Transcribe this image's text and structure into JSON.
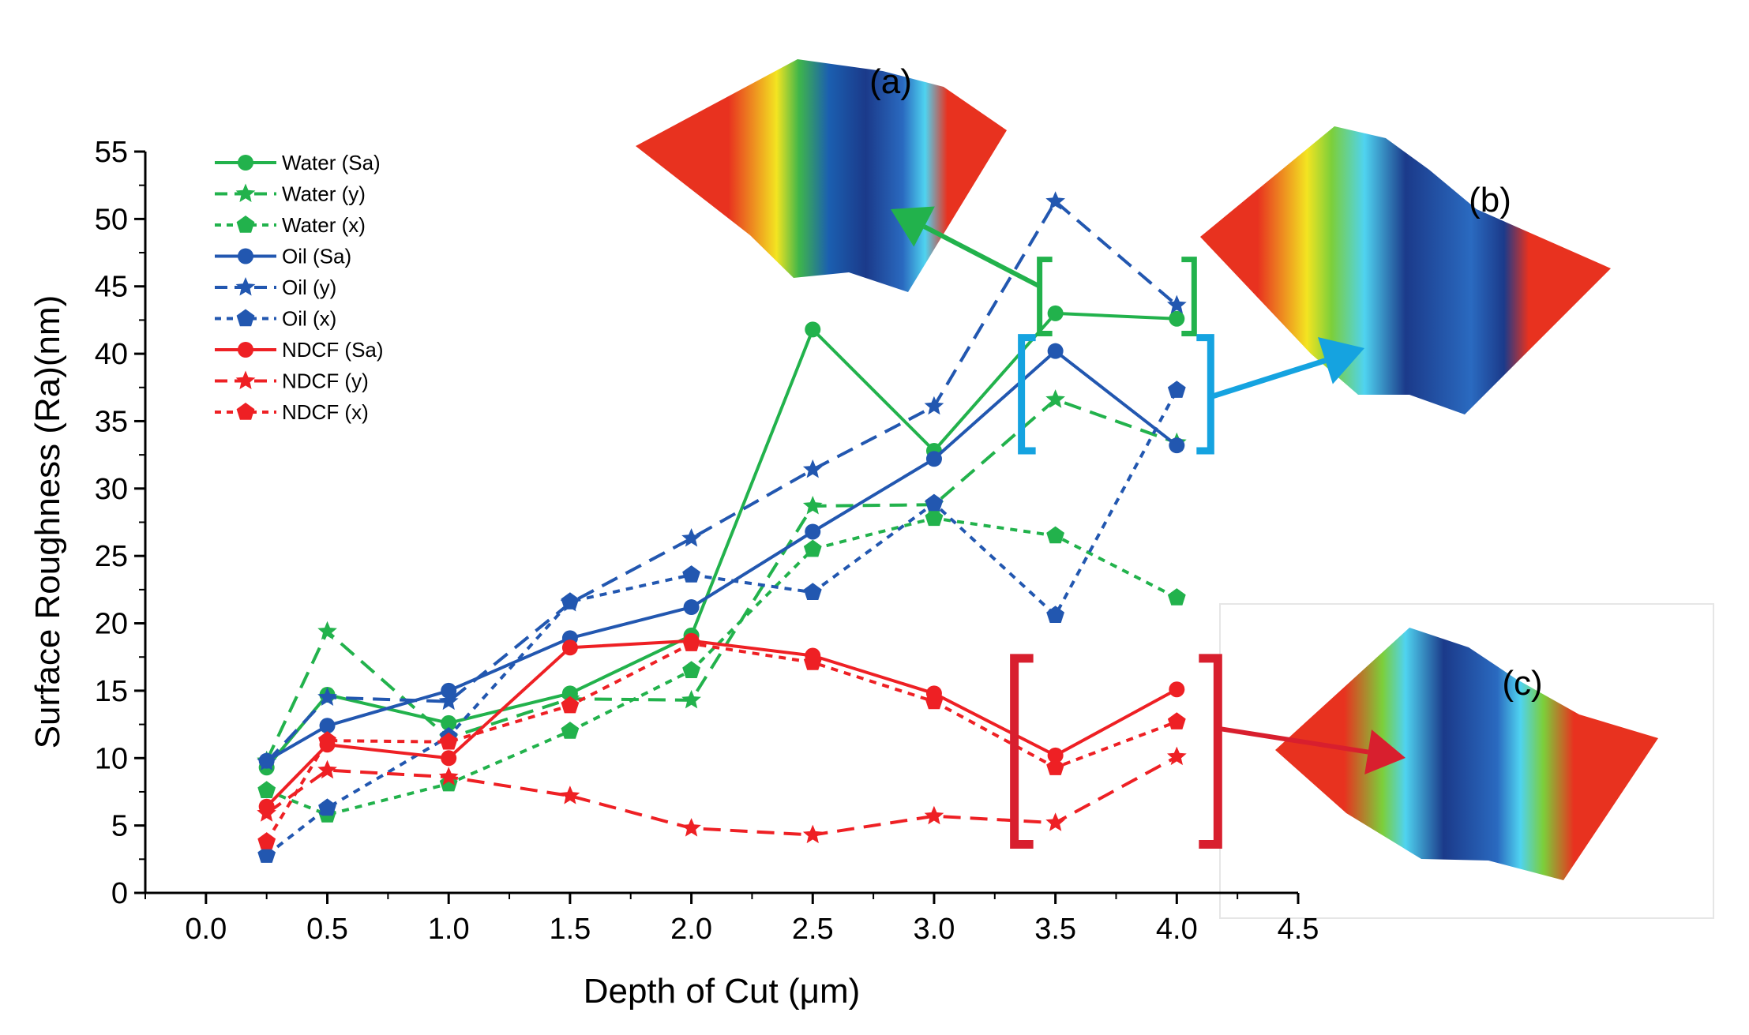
{
  "chart_data": {
    "type": "line",
    "title": "",
    "xlabel": "Depth of Cut (μm)",
    "ylabel": "Surface Roughness (Ra)(nm)",
    "xlim": [
      -0.25,
      4.5
    ],
    "ylim": [
      0,
      55
    ],
    "x_ticks": [
      0.0,
      0.5,
      1.0,
      1.5,
      2.0,
      2.5,
      3.0,
      3.5,
      4.0,
      4.5
    ],
    "x_tick_labels": [
      "0.0",
      "0.5",
      "1.0",
      "1.5",
      "2.0",
      "2.5",
      "3.0",
      "3.5",
      "4.0",
      "4.5"
    ],
    "y_ticks": [
      0,
      5,
      10,
      15,
      20,
      25,
      30,
      35,
      40,
      45,
      50,
      55
    ],
    "y_tick_labels": [
      "0",
      "5",
      "10",
      "15",
      "20",
      "25",
      "30",
      "35",
      "40",
      "45",
      "50",
      "55"
    ],
    "grid": false,
    "legend_position": "top-left",
    "x": [
      0.25,
      0.5,
      1.0,
      1.5,
      2.0,
      2.5,
      3.0,
      3.5,
      4.0
    ],
    "series": [
      {
        "name": "Water (Sa)",
        "color": "#22b24c",
        "dash": "solid",
        "marker": "circle",
        "values": [
          9.3,
          14.7,
          12.6,
          14.8,
          19.1,
          41.8,
          32.8,
          43.0,
          42.6
        ]
      },
      {
        "name": "Water (y)",
        "color": "#22b24c",
        "dash": "dash",
        "marker": "star",
        "values": [
          9.8,
          19.4,
          11.5,
          14.4,
          14.3,
          28.7,
          28.8,
          36.6,
          33.4
        ]
      },
      {
        "name": "Water (x)",
        "color": "#22b24c",
        "dash": "dot",
        "marker": "pentagon",
        "values": [
          7.6,
          5.8,
          8.1,
          12.0,
          16.5,
          25.5,
          27.8,
          26.5,
          21.9
        ]
      },
      {
        "name": "Oil (Sa)",
        "color": "#2257b0",
        "dash": "solid",
        "marker": "circle",
        "values": [
          9.8,
          12.4,
          15.0,
          18.9,
          21.2,
          26.8,
          32.2,
          40.2,
          33.2
        ]
      },
      {
        "name": "Oil (y)",
        "color": "#2257b0",
        "dash": "dash",
        "marker": "star",
        "values": [
          9.7,
          14.5,
          14.2,
          21.5,
          26.3,
          31.4,
          36.1,
          51.3,
          43.6
        ]
      },
      {
        "name": "Oil (x)",
        "color": "#2257b0",
        "dash": "dot",
        "marker": "pentagon",
        "values": [
          2.8,
          6.3,
          11.6,
          21.6,
          23.6,
          22.3,
          28.9,
          20.6,
          37.3
        ]
      },
      {
        "name": "NDCF (Sa)",
        "color": "#ee2024",
        "dash": "solid",
        "marker": "circle",
        "values": [
          6.4,
          11.0,
          10.0,
          18.2,
          18.7,
          17.6,
          14.8,
          10.2,
          15.1
        ]
      },
      {
        "name": "NDCF (y)",
        "color": "#ee2024",
        "dash": "dash",
        "marker": "star",
        "values": [
          5.9,
          9.1,
          8.6,
          7.2,
          4.8,
          4.3,
          5.7,
          5.2,
          10.1
        ]
      },
      {
        "name": "NDCF (x)",
        "color": "#ee2024",
        "dash": "dot",
        "marker": "pentagon",
        "values": [
          3.8,
          11.3,
          11.2,
          13.9,
          18.5,
          17.1,
          14.2,
          9.3,
          12.7
        ]
      }
    ],
    "annotations": [
      {
        "text": "(a)",
        "group": "Water",
        "color": "#22b24c",
        "x_range": [
          3.5,
          4.0
        ]
      },
      {
        "text": "(b)",
        "group": "Oil",
        "color": "#15a3e0",
        "x_range": [
          3.5,
          4.0
        ]
      },
      {
        "text": "(c)",
        "group": "NDCF",
        "color": "#d81f2e",
        "x_range": [
          3.5,
          4.0
        ]
      }
    ]
  }
}
